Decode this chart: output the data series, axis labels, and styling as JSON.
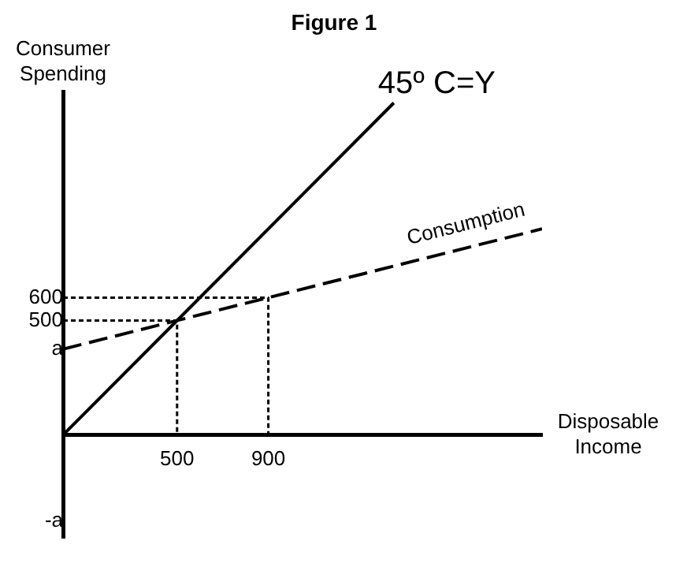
{
  "chart_data": {
    "type": "line",
    "title": "Figure 1",
    "xlabel": "Disposable Income",
    "ylabel": "Consumer Spending",
    "xlim": [
      0,
      2100
    ],
    "ylim": [
      -450,
      1500
    ],
    "xticks": [
      500,
      900
    ],
    "yticks": [
      {
        "value": -375,
        "label": "-a"
      },
      {
        "value": 375,
        "label": "a"
      },
      500,
      600
    ],
    "grid": false,
    "legend": false,
    "marker": "none",
    "series": [
      {
        "name": "45º C=Y",
        "color": "#000000",
        "line_style": "solid",
        "x": [
          0,
          1450
        ],
        "values": [
          0,
          1450
        ]
      },
      {
        "name": "Consumption",
        "color": "#000000",
        "line_style": "dashed",
        "x": [
          0,
          2100
        ],
        "values": [
          375,
          900
        ]
      },
      {
        "color": "#000000",
        "line_style": "dotted",
        "x": [
          0,
          500,
          500
        ],
        "values": [
          500,
          500,
          0
        ]
      },
      {
        "color": "#000000",
        "line_style": "dotted",
        "x": [
          0,
          900,
          900
        ],
        "values": [
          600,
          600,
          0
        ]
      }
    ]
  }
}
